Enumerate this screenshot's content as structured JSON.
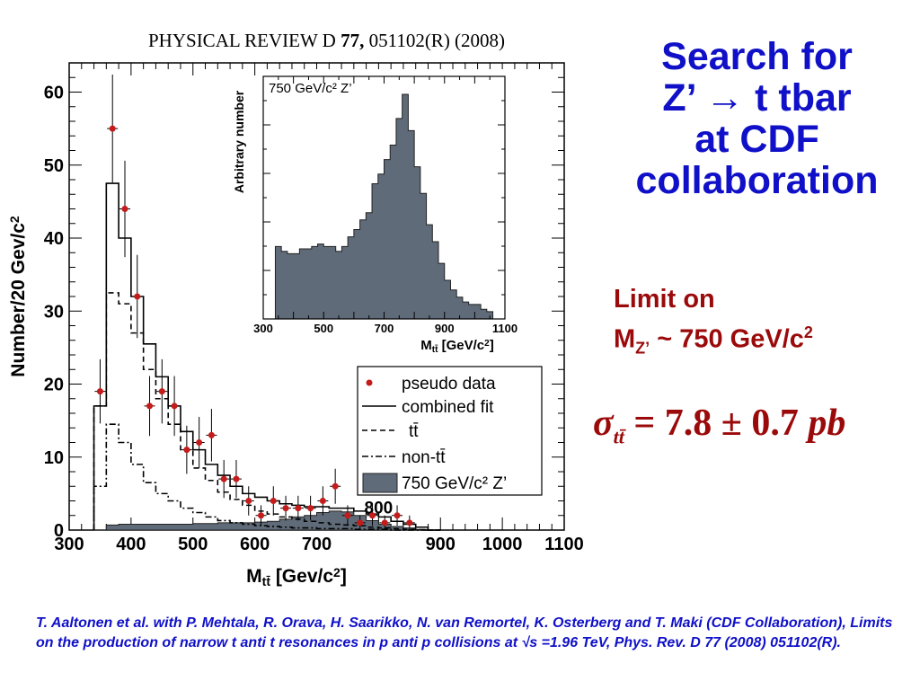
{
  "journal": {
    "prefix": "PHYSICAL REVIEW D",
    "volume": "77,",
    "rest": "051102(R) (2008)"
  },
  "slide": {
    "title_lines": [
      "Search for",
      "Z’ → t tbar",
      "at CDF",
      "collaboration"
    ],
    "limit_line1": "Limit on",
    "limit_line2_prefix": "M",
    "limit_line2_sub": "Z’",
    "limit_line2_mid": " ~ 750 GeV/c",
    "limit_line2_sup": "2",
    "xsec_sigma": "σ",
    "xsec_sub": "tt̄",
    "xsec_value": " = 7.8 ± 0.7 ",
    "xsec_unit": "pb",
    "citation": "T. Aaltonen et al. with P. Mehtala, R. Orava, H. Saarikko, N. van Remortel, K. Osterberg and T. Maki (CDF Collaboration), Limits on the production of narrow t anti t resonances in p anti p collisions at √s =1.96 TeV, Phys. Rev. D 77 (2008) 051102(R)."
  },
  "chart_data": [
    {
      "type": "histogram",
      "xlabel": "M",
      "xlabel_sub": "tt̄",
      "xlabel_unit": " [Gev/c",
      "xlabel_sup": "2",
      "xlabel_end": "]",
      "ylabel": "Number/20 Gev/c",
      "ylabel_sup": "2",
      "xlim": [
        300,
        1100
      ],
      "ylim": [
        0,
        64
      ],
      "xticks": [
        300,
        400,
        500,
        600,
        700,
        900,
        1000,
        1100
      ],
      "xtick_labels": [
        "300",
        "400",
        "500",
        "600",
        "700",
        "900",
        "1000",
        "1100"
      ],
      "yticks": [
        0,
        10,
        20,
        30,
        40,
        50,
        60
      ],
      "annotation": "800",
      "annotation_x": 800,
      "bin_edges": [
        340,
        360,
        380,
        400,
        420,
        440,
        460,
        480,
        500,
        520,
        540,
        560,
        580,
        600,
        620,
        640,
        660,
        680,
        700,
        720,
        740,
        760,
        780,
        800,
        820,
        840,
        860,
        880,
        900
      ],
      "series": [
        {
          "name": "combined fit",
          "style": "solid",
          "values": [
            17,
            47.5,
            40,
            32,
            25.5,
            21,
            17,
            13.5,
            11,
            9,
            7.5,
            6,
            5,
            4.5,
            4,
            3.6,
            3.4,
            3.2,
            3.2,
            3,
            3,
            2.6,
            2.2,
            1.8,
            1.2,
            0.8,
            0.4,
            0
          ]
        },
        {
          "name": "tt̄",
          "style": "dashed",
          "values": [
            17,
            32.5,
            31,
            27,
            22,
            18,
            14.5,
            11,
            8.5,
            6.8,
            5.2,
            4.2,
            3.4,
            2.6,
            2.2,
            1.8,
            1.5,
            1.2,
            1,
            0.8,
            0.7,
            0.6,
            0.4,
            0.3,
            0.2,
            0.1,
            0.05,
            0
          ]
        },
        {
          "name": "non-tt̄",
          "style": "dashdot",
          "values": [
            6,
            14.5,
            12,
            9,
            6.5,
            5,
            4,
            3,
            2.4,
            1.8,
            1.3,
            1,
            0.8,
            0.6,
            0.5,
            0.4,
            0.3,
            0.3,
            0.2,
            0.2,
            0.2,
            0.1,
            0.1,
            0.1,
            0,
            0,
            0,
            0
          ]
        },
        {
          "name": "750 GeV/c² Z’",
          "style": "filled",
          "color": "#5f6b78",
          "values": [
            0,
            0.7,
            0.8,
            0.8,
            0.8,
            0.8,
            0.8,
            0.8,
            0.9,
            0.9,
            1,
            1,
            1,
            1.1,
            1.2,
            1.5,
            1.8,
            2,
            2.4,
            2.6,
            2.5,
            2,
            1.3,
            0.8,
            0.5,
            0.3,
            0.1,
            0
          ]
        }
      ],
      "points": {
        "name": "pseudo data",
        "color": "#c41b1b",
        "x": [
          350,
          370,
          390,
          410,
          430,
          450,
          470,
          490,
          510,
          530,
          550,
          570,
          590,
          610,
          630,
          650,
          670,
          690,
          710,
          730,
          750,
          770,
          790,
          810,
          830,
          850
        ],
        "y": [
          19,
          55,
          44,
          32,
          17,
          19,
          17,
          11,
          12,
          13,
          7,
          7,
          4,
          2,
          4,
          3,
          3,
          3,
          4,
          6,
          2,
          1,
          2,
          1,
          2,
          1
        ],
        "err": [
          4.4,
          7.4,
          6.6,
          5.7,
          4.1,
          4.4,
          4.1,
          3.3,
          3.5,
          3.6,
          2.6,
          2.6,
          2,
          1.4,
          2,
          1.7,
          1.7,
          1.7,
          2,
          2.4,
          1.4,
          1,
          1.4,
          1,
          1.4,
          1
        ]
      },
      "legend": [
        {
          "label": "pseudo data"
        },
        {
          "label": "combined fit"
        },
        {
          "label": "tt̄"
        },
        {
          "label": "non-tt̄"
        },
        {
          "label": "750 GeV/c² Z’"
        }
      ],
      "legend_position": "right"
    },
    {
      "type": "histogram",
      "title": "750 GeV/c² Z’",
      "xlabel": "M",
      "xlabel_sub": "tt̄",
      "xlabel_unit": " [GeV/c",
      "xlabel_sup": "2",
      "xlabel_end": "]",
      "ylabel": "Arbitrary number",
      "xlim": [
        300,
        1100
      ],
      "xticks": [
        300,
        500,
        700,
        900,
        1100
      ],
      "xtick_labels": [
        "300",
        "500",
        "700",
        "900",
        "1100"
      ],
      "color": "#5f6b78",
      "bin_edges": [
        340,
        360,
        380,
        400,
        420,
        440,
        460,
        480,
        500,
        520,
        540,
        560,
        580,
        600,
        620,
        640,
        660,
        680,
        700,
        720,
        740,
        760,
        780,
        800,
        820,
        840,
        860,
        880,
        900,
        920,
        940,
        960,
        980,
        1000,
        1020,
        1040,
        1060
      ],
      "values": [
        30,
        28,
        27,
        27,
        29,
        29,
        30,
        31,
        30,
        30,
        28,
        30,
        34,
        37,
        41,
        44,
        56,
        60,
        66,
        72,
        83,
        93,
        78,
        63,
        52,
        39,
        32,
        23,
        16,
        12,
        9,
        7,
        6,
        6,
        4,
        3
      ]
    }
  ]
}
